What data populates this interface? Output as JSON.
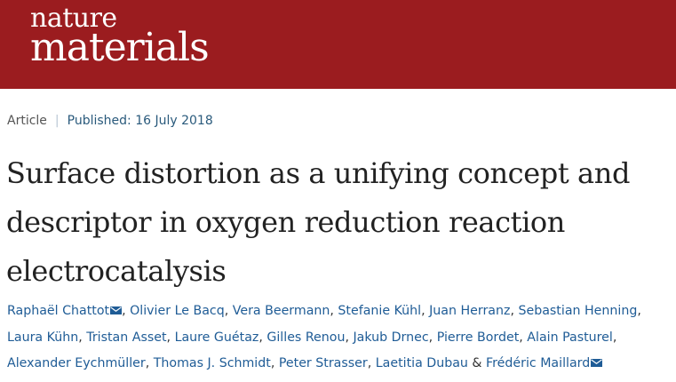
{
  "brand": {
    "line1": "nature",
    "line2": "materials"
  },
  "article": {
    "type": "Article",
    "published": "Published: 16 July 2018",
    "title": "Surface distortion as a unifying concept and descriptor in oxygen reduction reaction electrocatalysis"
  },
  "authors": [
    {
      "name": "Raphaël Chattot",
      "mail_icon": "envelope-icon",
      "sep": ", "
    },
    {
      "name": "Olivier Le Bacq",
      "sep": ", "
    },
    {
      "name": "Vera Beermann",
      "sep": ", "
    },
    {
      "name": "Stefanie Kühl",
      "sep": ", "
    },
    {
      "name": "Juan Herranz",
      "sep": ", "
    },
    {
      "name": "Sebastian Henning",
      "sep": ", "
    },
    {
      "name": "Laura Kühn",
      "sep": ", "
    },
    {
      "name": "Tristan Asset",
      "sep": ", "
    },
    {
      "name": "Laure Guétaz",
      "sep": ", "
    },
    {
      "name": "Gilles Renou",
      "sep": ", "
    },
    {
      "name": "Jakub Drnec",
      "sep": ", "
    },
    {
      "name": "Pierre Bordet",
      "sep": ", "
    },
    {
      "name": "Alain Pasturel",
      "sep": ", "
    },
    {
      "name": "Alexander Eychmüller",
      "sep": ", "
    },
    {
      "name": "Thomas J. Schmidt",
      "sep": ", "
    },
    {
      "name": "Peter Strasser",
      "sep": ", "
    },
    {
      "name": "Laetitia Dubau",
      "sep": " & "
    },
    {
      "name": "Frédéric Maillard",
      "mail_icon": "envelope-icon",
      "sep": ""
    }
  ],
  "colors": {
    "banner": "#9b1c1f",
    "link": "#1f5c96"
  }
}
